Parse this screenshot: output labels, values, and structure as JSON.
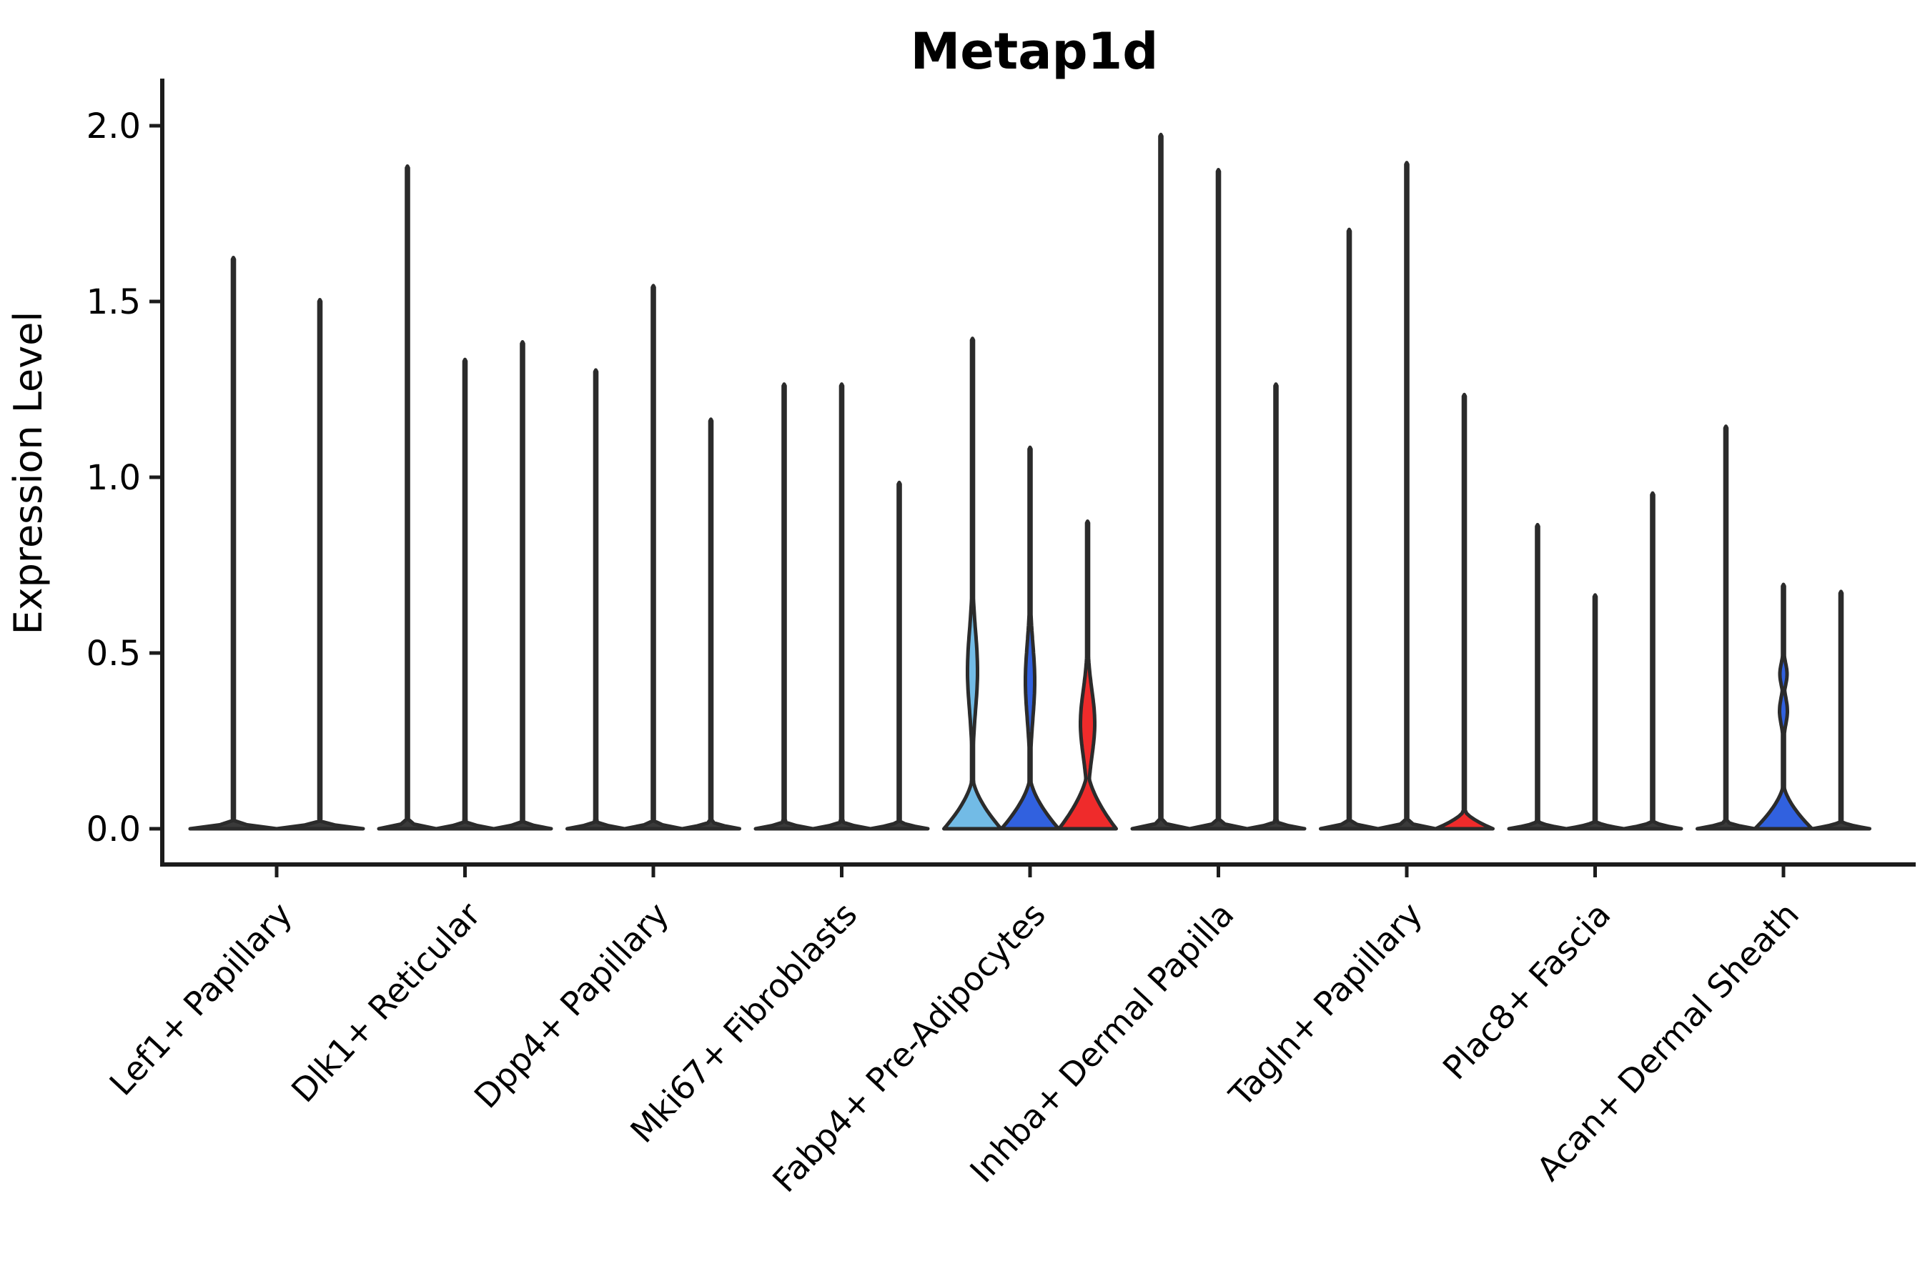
{
  "chart_data": {
    "type": "violin",
    "title": "Metap1d",
    "ylabel": "Expression Level",
    "xlabel": "",
    "ylim": [
      0,
      2.05
    ],
    "yticks": [
      "0.0",
      "0.5",
      "1.0",
      "1.5",
      "2.0"
    ],
    "ytick_values": [
      0.0,
      0.5,
      1.0,
      1.5,
      2.0
    ],
    "grid": false,
    "legend": false,
    "colors": {
      "outline": "#2b2b2b",
      "plain_fill": "#3a3a3a",
      "light_blue": "#72BBE6",
      "blue": "#3161DF",
      "red": "#EF2B2B",
      "axis": "#1c1c1c",
      "text": "#000000"
    },
    "categories": [
      "Lef1+ Papillary",
      "Dlk1+ Reticular",
      "Dpp4+ Papillary",
      "Mki67+ Fibroblasts",
      "Fabp4+ Pre-Adipocytes",
      "Inhba+ Dermal Papilla",
      "Tagln+ Papillary",
      "Plac8+ Fascia",
      "Acan+ Dermal Sheath"
    ],
    "groups": [
      {
        "category": "Lef1+ Papillary",
        "violins": [
          {
            "max": 1.62,
            "color": "plain"
          },
          {
            "max": 1.5,
            "color": "plain"
          }
        ]
      },
      {
        "category": "Dlk1+ Reticular",
        "violins": [
          {
            "max": 1.88,
            "color": "plain"
          },
          {
            "max": 1.33,
            "color": "plain"
          },
          {
            "max": 1.38,
            "color": "plain"
          }
        ]
      },
      {
        "category": "Dpp4+ Papillary",
        "violins": [
          {
            "max": 1.3,
            "color": "plain"
          },
          {
            "max": 1.54,
            "color": "plain"
          },
          {
            "max": 1.16,
            "color": "plain"
          }
        ]
      },
      {
        "category": "Mki67+ Fibroblasts",
        "violins": [
          {
            "max": 1.26,
            "color": "plain"
          },
          {
            "max": 1.26,
            "color": "plain"
          },
          {
            "max": 0.98,
            "color": "plain"
          }
        ]
      },
      {
        "category": "Fabp4+ Pre-Adipocytes",
        "violins": [
          {
            "max": 1.39,
            "color": "light_blue",
            "base": {
              "top": 0.15
            },
            "bulges": [
              {
                "center": 0.45,
                "span": 0.36,
                "halfw": 7
              }
            ]
          },
          {
            "max": 1.08,
            "color": "blue",
            "base": {
              "top": 0.15
            },
            "bulges": [
              {
                "center": 0.42,
                "span": 0.34,
                "halfw": 6.5
              }
            ]
          },
          {
            "max": 0.87,
            "color": "red",
            "base": {
              "top": 0.17
            },
            "bulges": [
              {
                "center": 0.3,
                "span": 0.3,
                "halfw": 10
              }
            ]
          }
        ]
      },
      {
        "category": "Inhba+ Dermal Papilla",
        "violins": [
          {
            "max": 1.97,
            "color": "plain"
          },
          {
            "max": 1.87,
            "color": "plain"
          },
          {
            "max": 1.26,
            "color": "plain"
          }
        ]
      },
      {
        "category": "Tagln+ Papillary",
        "violins": [
          {
            "max": 1.7,
            "color": "plain"
          },
          {
            "max": 1.89,
            "color": "plain"
          },
          {
            "max": 1.23,
            "color": "red",
            "base": {
              "top": 0.055
            }
          }
        ]
      },
      {
        "category": "Plac8+ Fascia",
        "violins": [
          {
            "max": 0.86,
            "color": "plain"
          },
          {
            "max": 0.66,
            "color": "plain"
          },
          {
            "max": 0.95,
            "color": "plain"
          }
        ]
      },
      {
        "category": "Acan+ Dermal Sheath",
        "violins": [
          {
            "max": 1.14,
            "color": "plain"
          },
          {
            "max": 0.69,
            "color": "blue",
            "base": {
              "top": 0.13
            },
            "bulges": [
              {
                "center": 0.44,
                "span": 0.1,
                "halfw": 5
              },
              {
                "center": 0.335,
                "span": 0.12,
                "halfw": 5.5
              }
            ]
          },
          {
            "max": 0.67,
            "color": "plain"
          }
        ]
      }
    ]
  }
}
